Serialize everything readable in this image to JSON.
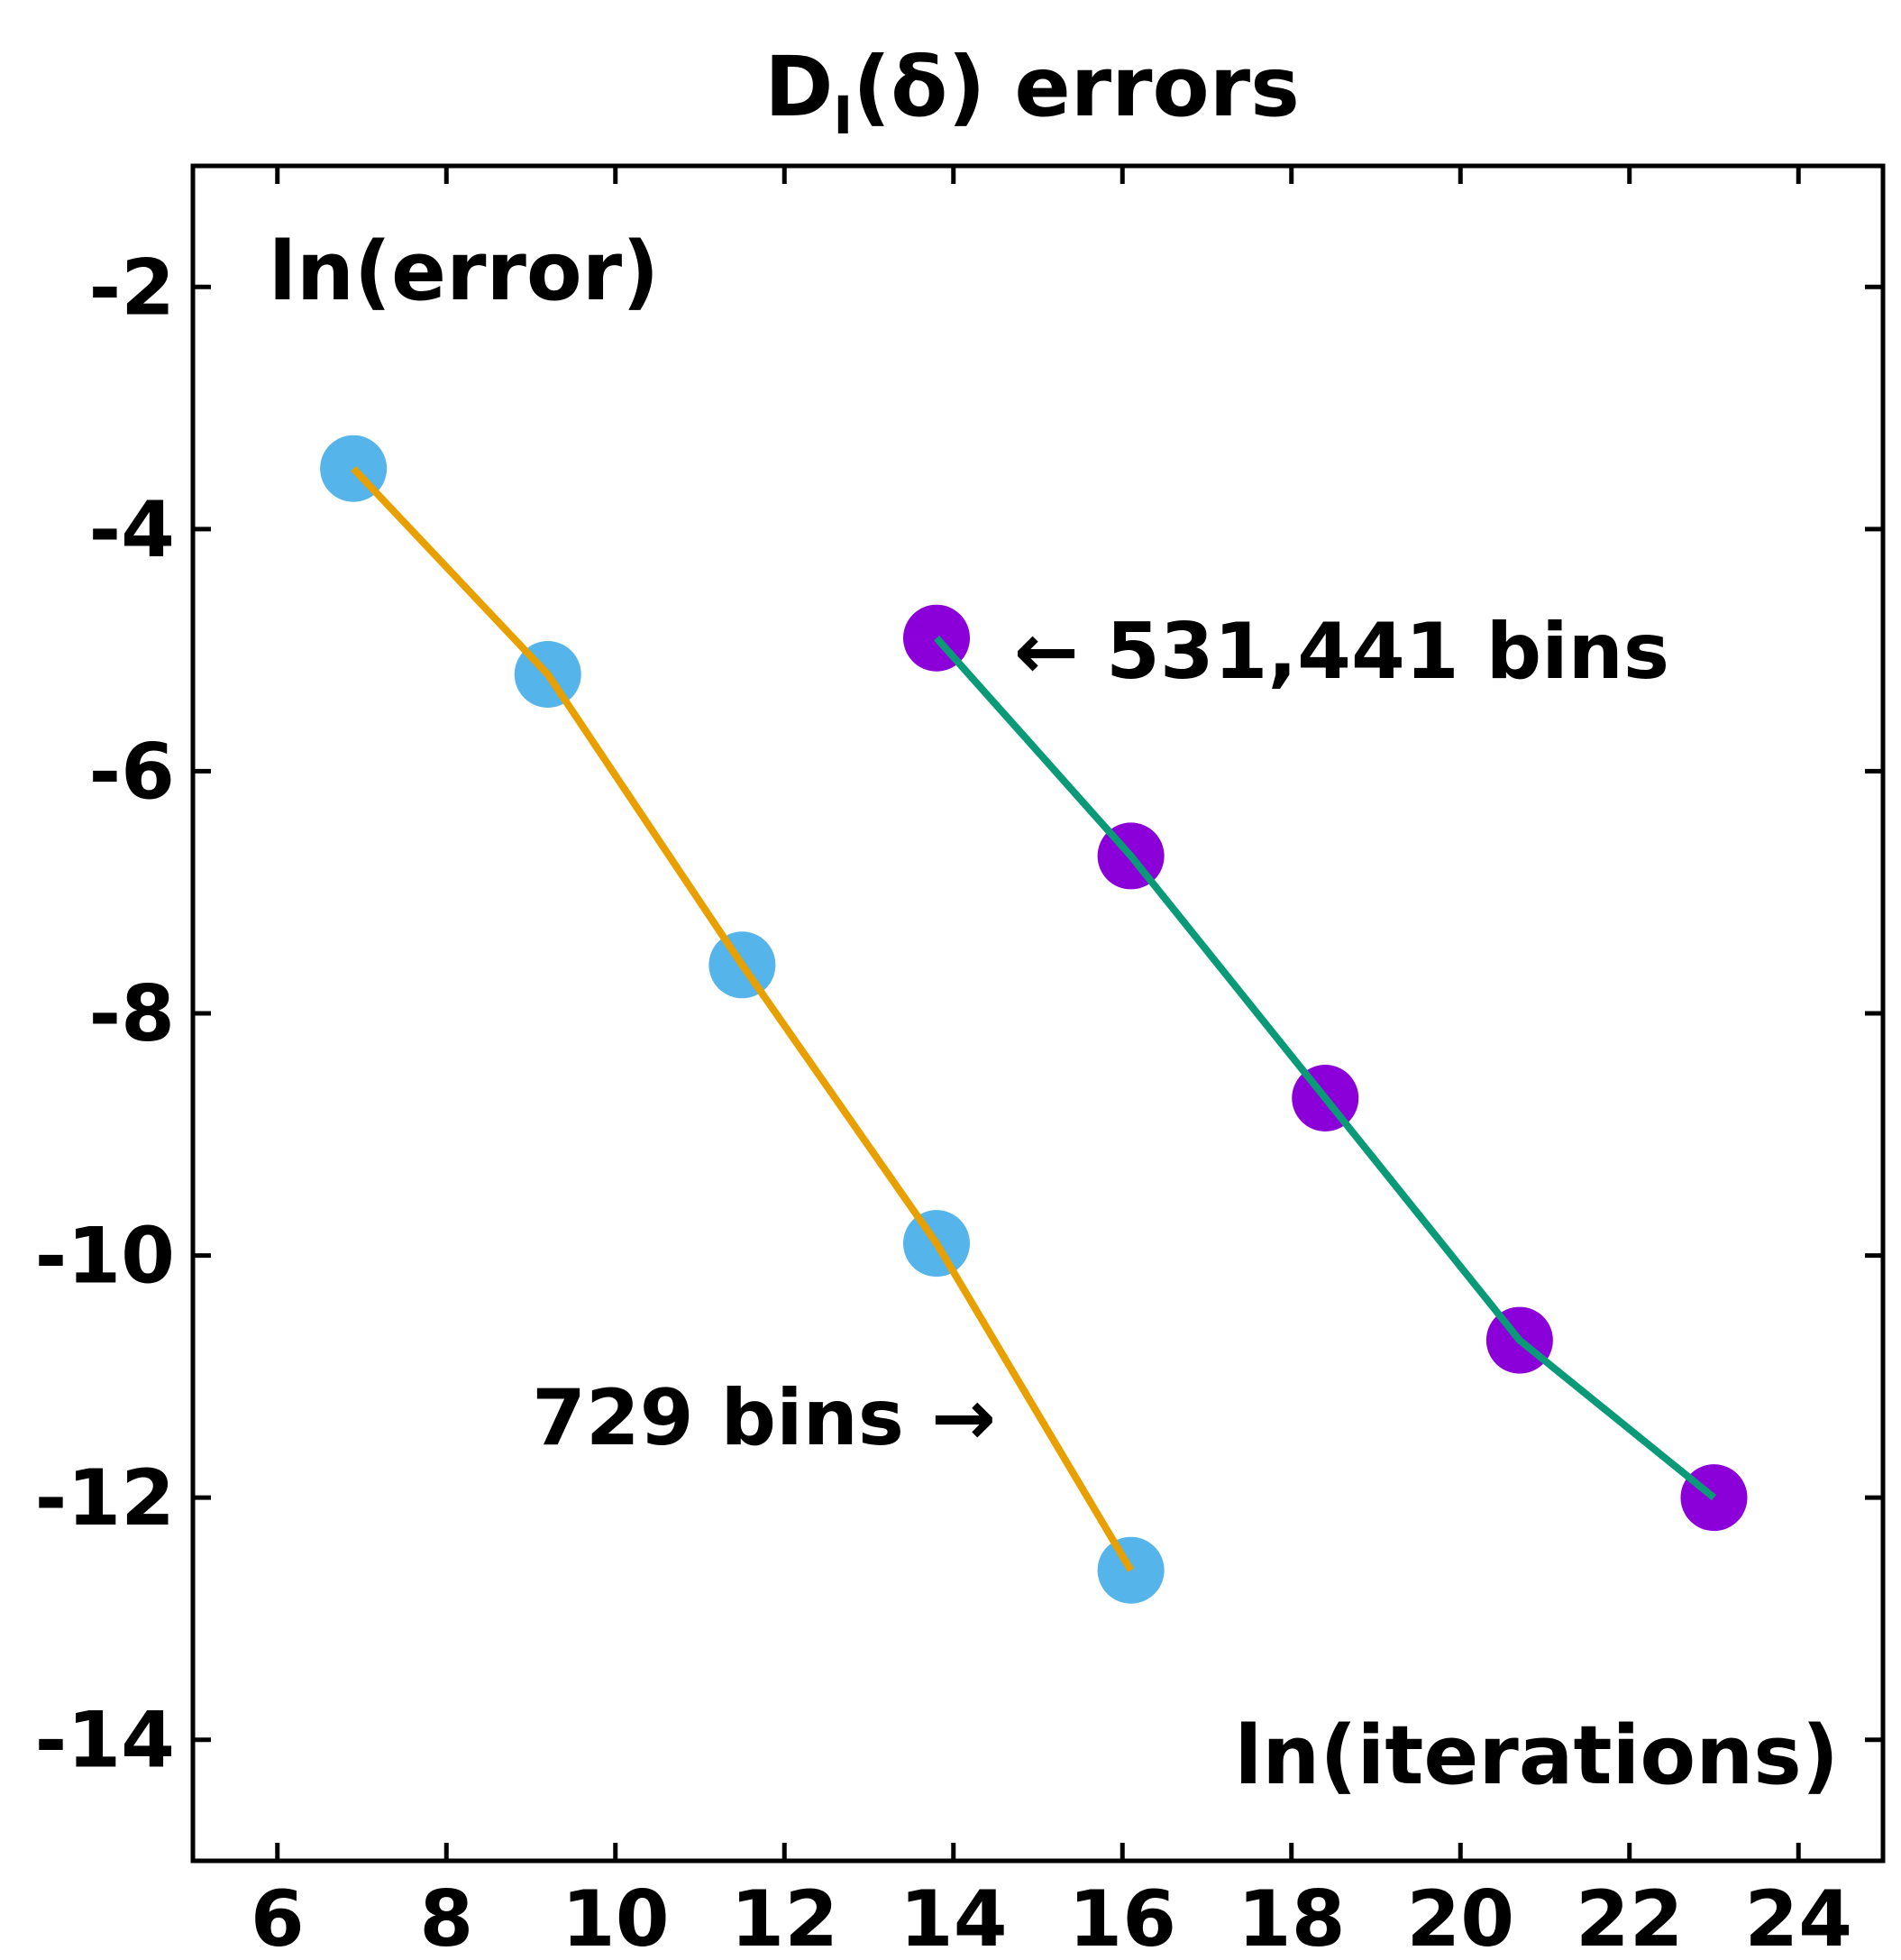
{
  "chart_data": {
    "type": "line",
    "title_main": "D",
    "title_sub": "I",
    "title_rest": "(δ) errors",
    "xlabel": "ln(iterations)",
    "ylabel": "ln(error)",
    "xlim": [
      5,
      25
    ],
    "ylim": [
      -15,
      -1
    ],
    "x_ticks": [
      "6",
      "8",
      "10",
      "12",
      "14",
      "16",
      "18",
      "20",
      "22",
      "24"
    ],
    "y_ticks": [
      "-2",
      "-4",
      "-6",
      "-8",
      "-10",
      "-12",
      "-14"
    ],
    "series": [
      {
        "name": "729 bins",
        "annotation": "729 bins →",
        "line_color": "#e8a000",
        "marker_color": "#55b4e9",
        "x": [
          6.9,
          9.2,
          11.5,
          13.8,
          16.1
        ],
        "y": [
          -3.5,
          -5.2,
          -7.6,
          -9.9,
          -12.6
        ]
      },
      {
        "name": "531,441 bins",
        "annotation": "← 531,441 bins",
        "line_color": "#0a9a78",
        "marker_color": "#8b00d9",
        "x": [
          13.8,
          16.1,
          18.4,
          20.7,
          23.0
        ],
        "y": [
          -4.9,
          -6.7,
          -8.7,
          -10.7,
          -12.0
        ]
      }
    ]
  }
}
